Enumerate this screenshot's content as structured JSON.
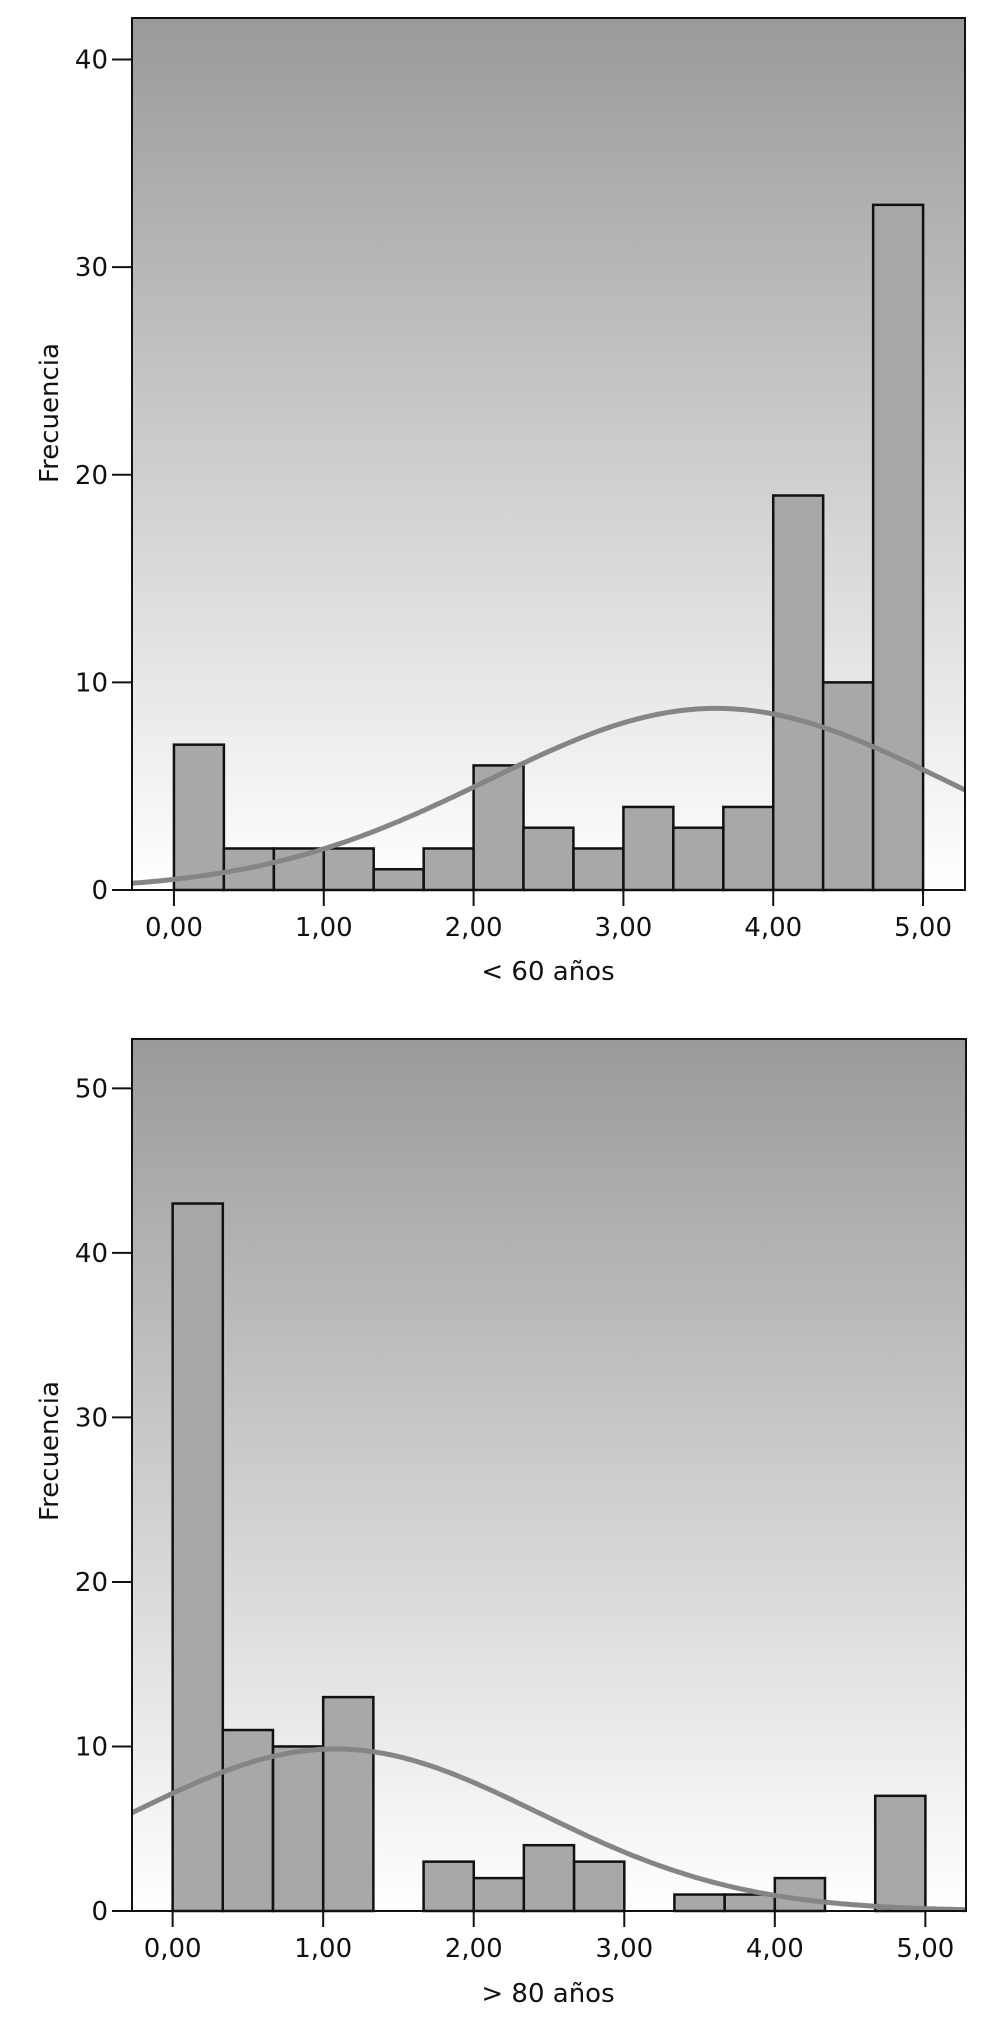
{
  "chart_data": [
    {
      "type": "bar",
      "xlabel": "< 60 años",
      "ylabel": "Frecuencia",
      "xlim": [
        -0.28,
        5.28
      ],
      "ylim": [
        0,
        42
      ],
      "x_ticks": [
        0,
        1,
        2,
        3,
        4,
        5
      ],
      "x_tick_labels": [
        "0,00",
        "1,00",
        "2,00",
        "3,00",
        "4,00",
        "5,00"
      ],
      "y_ticks": [
        0,
        10,
        20,
        30,
        40
      ],
      "y_tick_labels": [
        "0",
        "10",
        "20",
        "30",
        "40"
      ],
      "bin_width": 0.3333,
      "bin_starts": [
        0,
        0.333,
        0.667,
        1,
        1.333,
        1.667,
        2,
        2.333,
        2.667,
        3,
        3.333,
        3.667,
        4,
        4.333,
        4.667
      ],
      "values": [
        7,
        2,
        2,
        2,
        1,
        2,
        6,
        3,
        2,
        4,
        3,
        4,
        19,
        10,
        33
      ],
      "normal_curve": {
        "mean": 3.62,
        "sd": 1.52,
        "n": 100
      },
      "background_gradient": [
        "#9a9a9a",
        "#ffffff"
      ],
      "bar_color": "#a8a8a8",
      "curve_color": "#858585",
      "grid": false
    },
    {
      "type": "bar",
      "xlabel": "> 80 años",
      "ylabel": "Frecuencia",
      "xlim": [
        -0.27,
        5.27
      ],
      "ylim": [
        0,
        53
      ],
      "x_ticks": [
        0,
        1,
        2,
        3,
        4,
        5
      ],
      "x_tick_labels": [
        "0,00",
        "1,00",
        "2,00",
        "3,00",
        "4,00",
        "5,00"
      ],
      "y_ticks": [
        0,
        10,
        20,
        30,
        40,
        50
      ],
      "y_tick_labels": [
        "0",
        "10",
        "20",
        "30",
        "40",
        "50"
      ],
      "bin_width": 0.3333,
      "bin_starts": [
        0,
        0.333,
        0.667,
        1,
        1.333,
        1.667,
        2,
        2.333,
        2.667,
        3,
        3.333,
        3.667,
        4,
        4.333,
        4.667
      ],
      "values": [
        43,
        11,
        10,
        13,
        0,
        3,
        2,
        4,
        3,
        0,
        1,
        1,
        2,
        0,
        7
      ],
      "normal_curve": {
        "mean": 1.08,
        "sd": 1.35,
        "n": 100
      },
      "background_gradient": [
        "#9a9a9a",
        "#ffffff"
      ],
      "bar_color": "#a8a8a8",
      "curve_color": "#858585",
      "grid": false
    }
  ]
}
